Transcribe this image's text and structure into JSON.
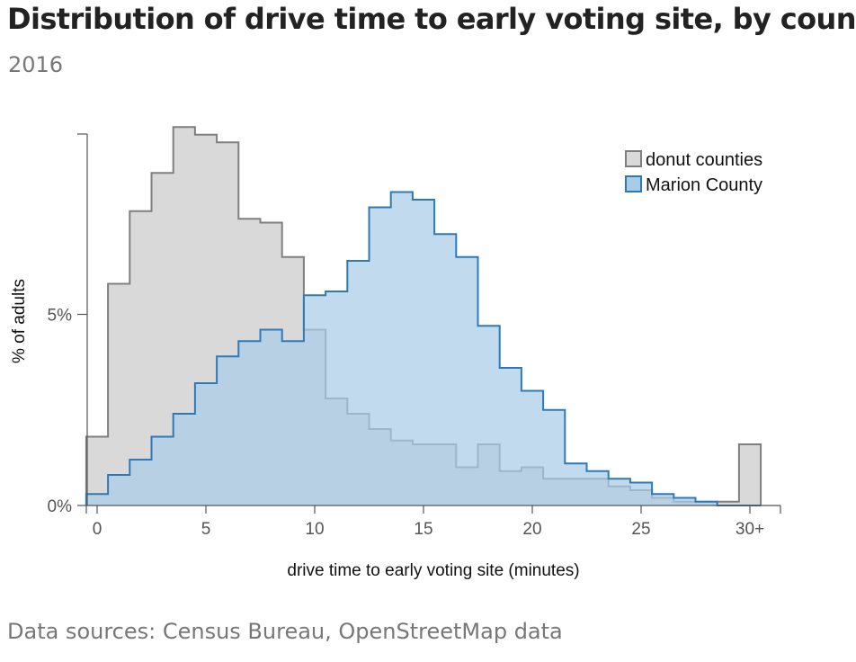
{
  "header": {
    "title": "Distribution of drive time to early voting site, by county",
    "subtitle": "2016"
  },
  "footer": {
    "source": "Data sources: Census Bureau, OpenStreetMap data"
  },
  "colors": {
    "donut_fill": "#d9d9d9",
    "donut_stroke": "#7f7f7f",
    "marion_fill": "#a9cce6",
    "marion_stroke": "#2e7ab8",
    "axis": "#555555"
  },
  "chart_data": {
    "type": "area",
    "subtype": "step histogram",
    "xlabel": "drive time to early voting site (minutes)",
    "ylabel": "% of adults",
    "xlim": [
      -0.5,
      31
    ],
    "ylim": [
      0,
      10
    ],
    "x_ticks": [
      0,
      5,
      10,
      15,
      20,
      25,
      30
    ],
    "x_tick_labels": [
      "0",
      "5",
      "10",
      "15",
      "20",
      "25",
      "30+"
    ],
    "y_ticks": [
      0,
      5
    ],
    "y_tick_labels": [
      "0%",
      "5%"
    ],
    "legend_position": "top-right",
    "bins": [
      0,
      1,
      2,
      3,
      4,
      5,
      6,
      7,
      8,
      9,
      10,
      11,
      12,
      13,
      14,
      15,
      16,
      17,
      18,
      19,
      20,
      21,
      22,
      23,
      24,
      25,
      26,
      27,
      28,
      29,
      30
    ],
    "series": [
      {
        "name": "donut counties",
        "values": [
          1.8,
          5.8,
          7.7,
          8.7,
          9.9,
          9.7,
          9.5,
          7.5,
          7.4,
          6.5,
          4.6,
          2.8,
          2.4,
          2.0,
          1.7,
          1.6,
          1.6,
          1.0,
          1.6,
          0.9,
          1.0,
          0.7,
          0.7,
          0.7,
          0.5,
          0.4,
          0.2,
          0.1,
          0.1,
          0.1,
          1.6
        ]
      },
      {
        "name": "Marion County",
        "values": [
          0.3,
          0.8,
          1.2,
          1.8,
          2.4,
          3.2,
          3.9,
          4.3,
          4.6,
          4.3,
          5.5,
          5.6,
          6.4,
          7.8,
          8.2,
          8.0,
          7.1,
          6.5,
          4.7,
          3.6,
          3.0,
          2.5,
          1.1,
          0.9,
          0.7,
          0.6,
          0.3,
          0.2,
          0.1,
          0.0,
          0.0
        ]
      }
    ]
  }
}
